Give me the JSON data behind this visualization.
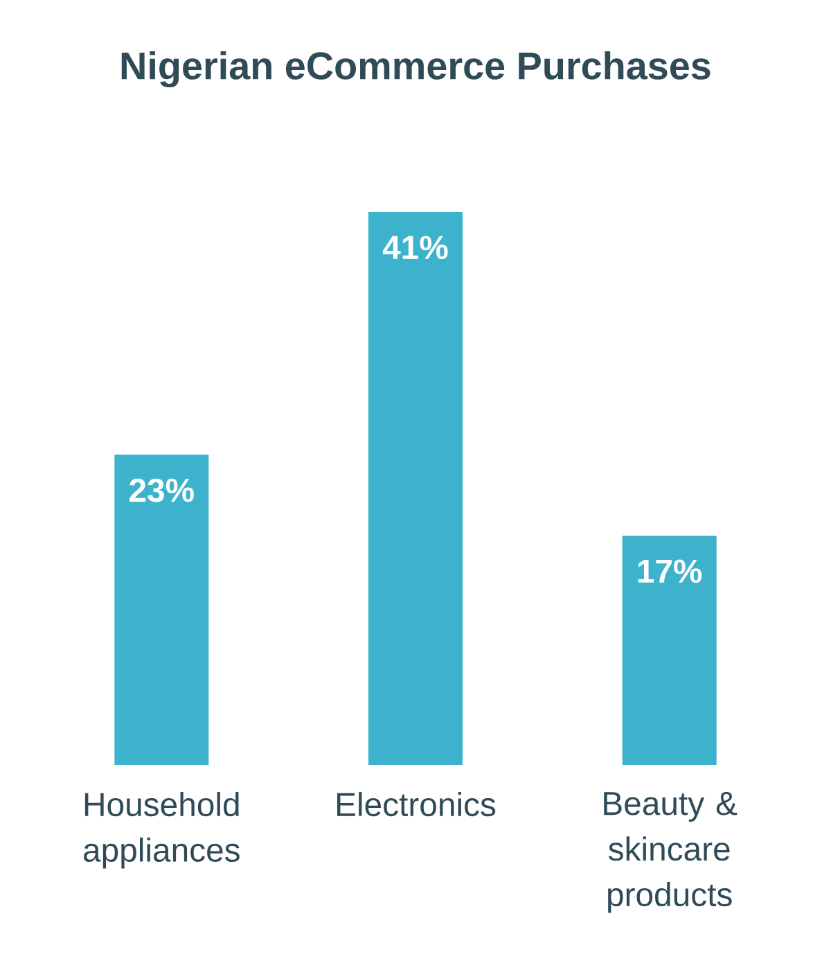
{
  "chart_data": {
    "type": "bar",
    "title": "Nigerian eCommerce Purchases",
    "categories": [
      "Household appliances",
      "Electronics",
      "Beauty & skincare products"
    ],
    "values": [
      23,
      41,
      17
    ],
    "value_labels": [
      "23%",
      "41%",
      "17%"
    ],
    "color": "#3db2cc"
  }
}
